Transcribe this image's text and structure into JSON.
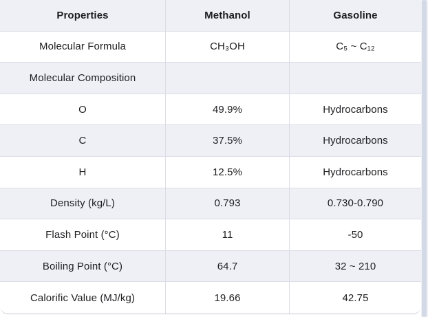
{
  "colors": {
    "shaded_row_bg": "#eef0f5",
    "white_row_bg": "#ffffff",
    "grid_line": "#dadde5",
    "card_bottom_border": "#c3c6d0",
    "text": "#1d1d20",
    "scrollbar_thumb": "#d4d9e6"
  },
  "table": {
    "headers": [
      "Properties",
      "Methanol",
      "Gasoline"
    ],
    "rows": [
      {
        "cells": [
          "Molecular Formula",
          "CH₃OH",
          "C₅ ~ C₁₂"
        ]
      },
      {
        "cells": [
          "Molecular Composition",
          "",
          ""
        ]
      },
      {
        "cells": [
          "O",
          "49.9%",
          "Hydrocarbons"
        ]
      },
      {
        "cells": [
          "C",
          "37.5%",
          "Hydrocarbons"
        ]
      },
      {
        "cells": [
          "H",
          "12.5%",
          "Hydrocarbons"
        ]
      },
      {
        "cells": [
          "Density (kg/L)",
          "0.793",
          "0.730-0.790"
        ]
      },
      {
        "cells": [
          "Flash Point (°C)",
          "11",
          "-50"
        ]
      },
      {
        "cells": [
          "Boiling Point (°C)",
          "64.7",
          "32 ~ 210"
        ]
      },
      {
        "cells": [
          "Calorific Value (MJ/kg)",
          "19.66",
          "42.75"
        ]
      }
    ]
  },
  "chart_data": {
    "type": "table",
    "title": "",
    "columns": [
      "Properties",
      "Methanol",
      "Gasoline"
    ],
    "rows": [
      [
        "Molecular Formula",
        "CH₃OH",
        "C₅ ~ C₁₂"
      ],
      [
        "Molecular Composition",
        "",
        ""
      ],
      [
        "O",
        "49.9%",
        "Hydrocarbons"
      ],
      [
        "C",
        "37.5%",
        "Hydrocarbons"
      ],
      [
        "H",
        "12.5%",
        "Hydrocarbons"
      ],
      [
        "Density (kg/L)",
        "0.793",
        "0.730-0.790"
      ],
      [
        "Flash Point (°C)",
        "11",
        "-50"
      ],
      [
        "Boiling Point (°C)",
        "64.7",
        "32 ~ 210"
      ],
      [
        "Calorific Value (MJ/kg)",
        "19.66",
        "42.75"
      ]
    ],
    "layout": {
      "striped": true,
      "header_bold": true,
      "cell_alignment": "center"
    }
  }
}
